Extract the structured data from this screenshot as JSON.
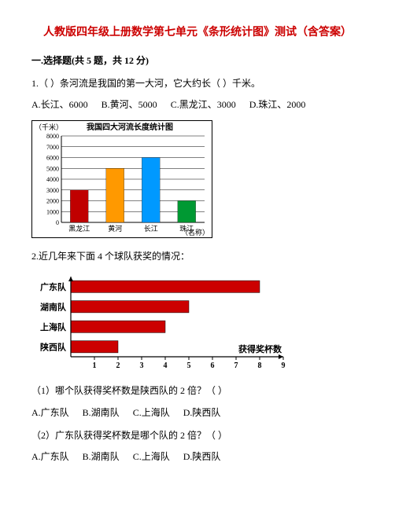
{
  "title": "人教版四年级上册数学第七单元《条形统计图》测试（含答案）",
  "section1": "一.选择题(共 5 题，共 12 分)",
  "q1": {
    "text": "1.（  ）条河流是我国的第一大河，它大约长（  ）千米。",
    "opts": {
      "a": "A.长江、6000",
      "b": "B.黄河、5000",
      "c": "C.黑龙江、3000",
      "d": "D.珠江、2000"
    }
  },
  "chart1": {
    "title": "我国四大河流长度统计图",
    "ylabel": "（千米）",
    "xlabel": "（名称）",
    "yticks": [
      "0",
      "1000",
      "2000",
      "3000",
      "4000",
      "5000",
      "6000",
      "7000",
      "8000"
    ],
    "bars": [
      {
        "label": "黑龙江",
        "value": 3000,
        "color": "#c00000"
      },
      {
        "label": "黄河",
        "value": 5000,
        "color": "#ff9900"
      },
      {
        "label": "长江",
        "value": 6000,
        "color": "#0099ff"
      },
      {
        "label": "珠江",
        "value": 2000,
        "color": "#009933"
      }
    ],
    "ylim": [
      0,
      8000
    ],
    "grid_color": "#000000",
    "border_color": "#000000",
    "bgcolor": "#ffffff"
  },
  "q2": {
    "text": "2.近几年来下面 4 个球队获奖的情况：",
    "sub1": "（1）哪个队获得奖杯数是陕西队的 2 倍？（  ）",
    "sub2": "（2）广东队获得奖杯数是哪个队的 2 倍？（  ）",
    "opts": {
      "a": "A.广东队",
      "b": "B.湖南队",
      "c": "C.上海队",
      "d": "D.陕西队"
    }
  },
  "chart2": {
    "categories": [
      "广东队",
      "湖南队",
      "上海队",
      "陕西队"
    ],
    "values": [
      8,
      5,
      4,
      2
    ],
    "xticks": [
      "1",
      "2",
      "3",
      "4",
      "5",
      "6",
      "7",
      "8",
      "9"
    ],
    "xlabel": "获得奖杯数",
    "bar_color": "#cc0000",
    "grid": false,
    "xlim": [
      0,
      9
    ],
    "axis_color": "#000000"
  }
}
